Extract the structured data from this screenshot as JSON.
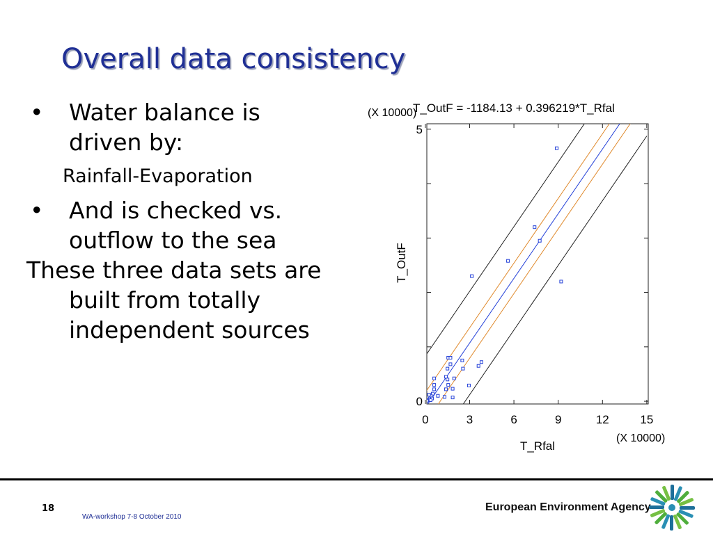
{
  "slide": {
    "title": "Overall data consistency",
    "bullets": [
      {
        "marker": "•",
        "text": "Water balance is driven by:"
      },
      {
        "marker": "•",
        "text": "And is checked vs. outflow to the sea"
      }
    ],
    "sub_text": "Rainfall-Evaporation",
    "paragraph": "These three data sets are built from totally independent sources"
  },
  "footer": {
    "page_number": "18",
    "note": "WA-workshop 7-8 October 2010",
    "agency": "European Environment Agency",
    "logo_icon": "eea-logo-icon"
  },
  "chart_data": {
    "type": "scatter",
    "title": "T_OutF = -1184.13 + 0.396219*T_Rfal",
    "xlabel": "T_Rfal",
    "ylabel": "T_OutF",
    "x_multiplier": "(X 10000)",
    "y_multiplier": "(X 10000)",
    "xlim": [
      0,
      15
    ],
    "ylim": [
      0,
      5
    ],
    "x_ticks": [
      0,
      3,
      6,
      9,
      12,
      15
    ],
    "y_ticks": [
      0,
      5
    ],
    "y_minor_ticks": [
      1,
      2,
      3,
      4
    ],
    "fit": {
      "intercept": -0.118413,
      "slope": 0.396219
    },
    "bands": [
      {
        "kind": "confidence",
        "color": "#e08a2c",
        "intercept_offsets": [
          0.28,
          -0.28
        ]
      },
      {
        "kind": "prediction",
        "color": "#222222",
        "intercept_offsets": [
          0.95,
          -0.95
        ]
      }
    ],
    "fit_color": "#2340d8",
    "point_color": "#2340d8",
    "series": [
      {
        "values": [
          [
            8.9,
            4.65
          ],
          [
            7.4,
            3.2
          ],
          [
            7.75,
            2.95
          ],
          [
            5.6,
            2.58
          ],
          [
            3.15,
            2.3
          ],
          [
            9.2,
            2.2
          ],
          [
            3.8,
            0.72
          ],
          [
            3.6,
            0.65
          ],
          [
            2.5,
            0.75
          ],
          [
            2.55,
            0.6
          ],
          [
            1.55,
            0.8
          ],
          [
            1.7,
            0.8
          ],
          [
            1.7,
            0.68
          ],
          [
            1.5,
            0.6
          ],
          [
            1.4,
            0.45
          ],
          [
            1.5,
            0.4
          ],
          [
            1.95,
            0.42
          ],
          [
            1.55,
            0.3
          ],
          [
            0.6,
            0.42
          ],
          [
            0.6,
            0.3
          ],
          [
            1.4,
            0.22
          ],
          [
            0.85,
            0.1
          ],
          [
            0.6,
            0.22
          ],
          [
            0.5,
            0.14
          ],
          [
            0.35,
            0.1
          ],
          [
            0.3,
            0.05
          ],
          [
            0.45,
            0.05
          ],
          [
            0.15,
            0.02
          ],
          [
            0.1,
            0.01
          ],
          [
            1.3,
            0.08
          ],
          [
            1.85,
            0.23
          ],
          [
            1.85,
            0.07
          ],
          [
            2.95,
            0.29
          ],
          [
            0.25,
            0.12
          ],
          [
            0.35,
            0.02
          ]
        ]
      }
    ]
  }
}
